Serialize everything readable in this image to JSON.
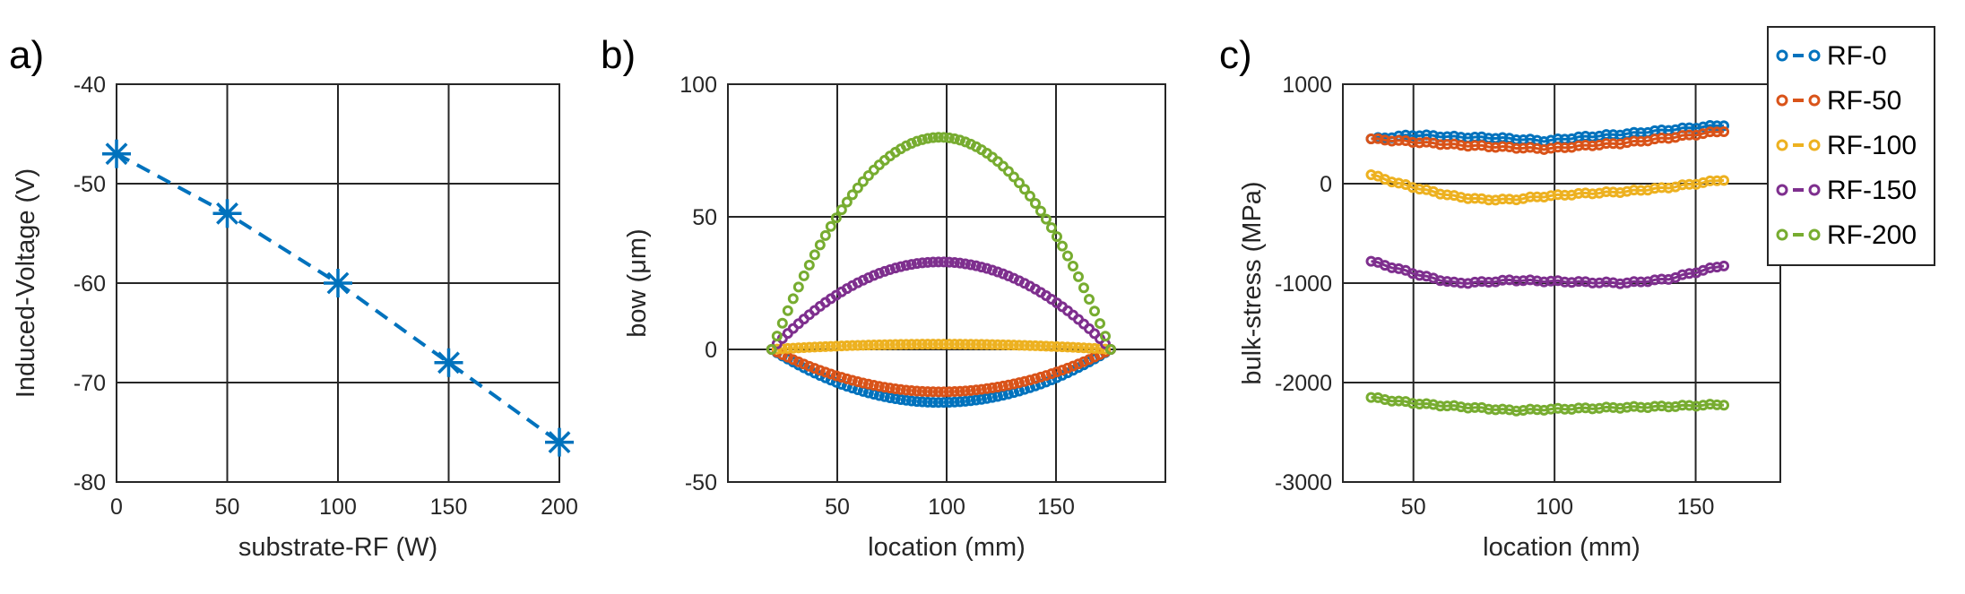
{
  "charts": [
    {
      "label": "a)",
      "type": "line",
      "xlabel": "substrate-RF (W)",
      "ylabel": "Induced-Voltage (V)",
      "xlim": [
        0,
        200
      ],
      "ylim": [
        -80,
        -40
      ],
      "xticks": [
        0,
        50,
        100,
        150,
        200
      ],
      "yticks": [
        -80,
        -70,
        -60,
        -50,
        -40
      ],
      "color": "#0072BD",
      "series": [
        {
          "name": "Induced-Voltage",
          "x": [
            0,
            50,
            100,
            150,
            200
          ],
          "y": [
            -47,
            -53,
            -60,
            -68,
            -76
          ]
        }
      ]
    },
    {
      "label": "b)",
      "type": "scatter",
      "xlabel": "location (mm)",
      "ylabel": "bow (μm)",
      "xlim": [
        0,
        200
      ],
      "ylim": [
        -50,
        100
      ],
      "xticks": [
        50,
        100,
        150
      ],
      "yticks": [
        -50,
        0,
        50,
        100
      ],
      "series": [
        {
          "name": "RF-0",
          "color": "#0072BD",
          "shape": "parabola",
          "x_start": 20,
          "x_end": 175,
          "peak_x": 97,
          "peak_y": -20
        },
        {
          "name": "RF-50",
          "color": "#D95319",
          "shape": "parabola",
          "x_start": 20,
          "x_end": 175,
          "peak_x": 97,
          "peak_y": -16
        },
        {
          "name": "RF-100",
          "color": "#EDB120",
          "shape": "parabola",
          "x_start": 20,
          "x_end": 175,
          "peak_x": 97,
          "peak_y": 2
        },
        {
          "name": "RF-150",
          "color": "#7E2F8E",
          "shape": "parabola",
          "x_start": 20,
          "x_end": 175,
          "peak_x": 97,
          "peak_y": 33
        },
        {
          "name": "RF-200",
          "color": "#77AC30",
          "shape": "parabola",
          "x_start": 20,
          "x_end": 175,
          "peak_x": 97,
          "peak_y": 80
        }
      ]
    },
    {
      "label": "c)",
      "type": "line",
      "xlabel": "location (mm)",
      "ylabel": "bulk-stress (MPa)",
      "xlim": [
        25,
        180
      ],
      "ylim": [
        -3000,
        1000
      ],
      "xticks": [
        50,
        100,
        150
      ],
      "yticks": [
        -3000,
        -2000,
        -1000,
        0,
        1000
      ],
      "series": [
        {
          "name": "RF-0",
          "color": "#0072BD",
          "x": [
            35,
            50,
            65,
            80,
            97,
            110,
            125,
            140,
            160
          ],
          "y": [
            450,
            490,
            470,
            460,
            430,
            470,
            500,
            540,
            590
          ]
        },
        {
          "name": "RF-50",
          "color": "#D95319",
          "x": [
            35,
            50,
            65,
            80,
            97,
            110,
            125,
            140,
            160
          ],
          "y": [
            450,
            420,
            390,
            370,
            350,
            380,
            410,
            460,
            530
          ]
        },
        {
          "name": "RF-100",
          "color": "#EDB120",
          "x": [
            35,
            45,
            55,
            65,
            75,
            85,
            95,
            110,
            125,
            140,
            160
          ],
          "y": [
            90,
            0,
            -70,
            -130,
            -160,
            -160,
            -130,
            -100,
            -80,
            -40,
            40
          ]
        },
        {
          "name": "RF-150",
          "color": "#7E2F8E",
          "x": [
            35,
            45,
            55,
            65,
            75,
            85,
            97,
            110,
            125,
            140,
            160
          ],
          "y": [
            -780,
            -860,
            -940,
            -1000,
            -990,
            -970,
            -980,
            -990,
            -1000,
            -960,
            -820
          ]
        },
        {
          "name": "RF-200",
          "color": "#77AC30",
          "x": [
            35,
            45,
            55,
            65,
            75,
            85,
            97,
            110,
            125,
            140,
            160
          ],
          "y": [
            -2150,
            -2190,
            -2220,
            -2240,
            -2260,
            -2280,
            -2270,
            -2260,
            -2250,
            -2240,
            -2220
          ]
        }
      ]
    }
  ],
  "legend": {
    "placement": "top-right",
    "entries": [
      {
        "name": "RF-0",
        "color": "#0072BD"
      },
      {
        "name": "RF-50",
        "color": "#D95319"
      },
      {
        "name": "RF-100",
        "color": "#EDB120"
      },
      {
        "name": "RF-150",
        "color": "#7E2F8E"
      },
      {
        "name": "RF-200",
        "color": "#77AC30"
      }
    ]
  }
}
